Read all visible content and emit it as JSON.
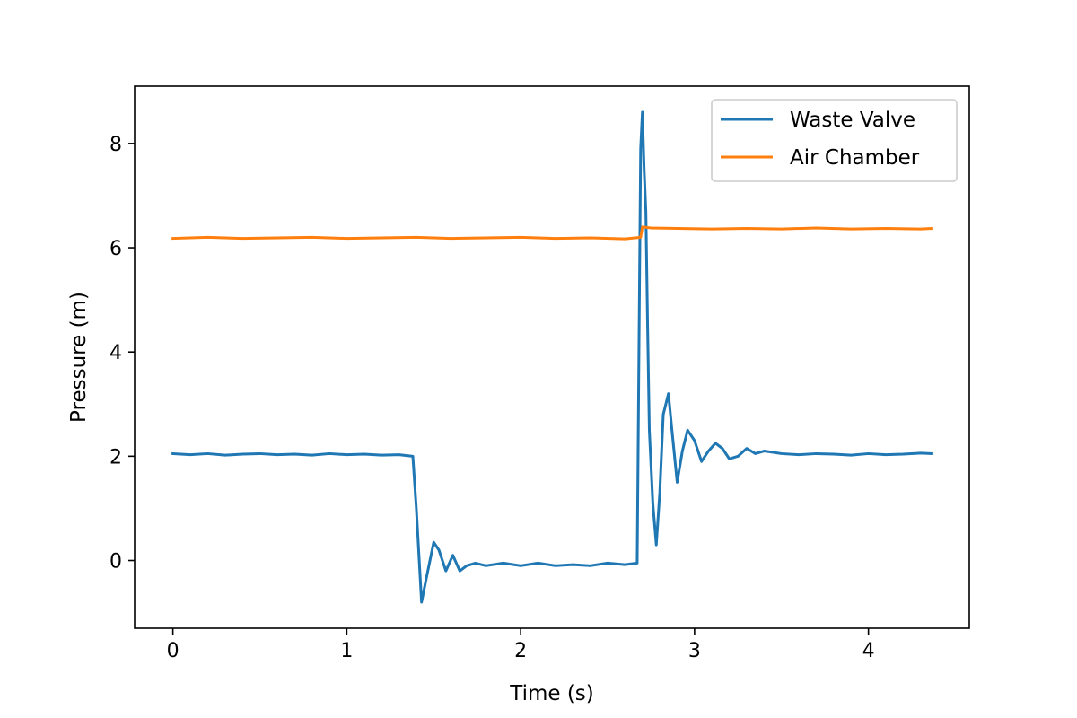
{
  "chart_data": {
    "type": "line",
    "xlabel": "Time (s)",
    "ylabel": "Pressure (m)",
    "xlim": [
      -0.22,
      4.58
    ],
    "ylim": [
      -1.3,
      9.1
    ],
    "xticks": [
      0,
      1,
      2,
      3,
      4
    ],
    "yticks": [
      0,
      2,
      4,
      6,
      8
    ],
    "grid": false,
    "legend_position": "top-right",
    "series": [
      {
        "name": "Waste Valve",
        "color": "#1f77b4",
        "x": [
          0,
          0.1,
          0.2,
          0.3,
          0.4,
          0.5,
          0.6,
          0.7,
          0.8,
          0.9,
          1.0,
          1.1,
          1.2,
          1.3,
          1.38,
          1.4,
          1.43,
          1.46,
          1.5,
          1.53,
          1.57,
          1.61,
          1.65,
          1.69,
          1.74,
          1.8,
          1.9,
          2.0,
          2.1,
          2.2,
          2.3,
          2.4,
          2.5,
          2.6,
          2.67,
          2.69,
          2.7,
          2.71,
          2.72,
          2.73,
          2.74,
          2.76,
          2.78,
          2.8,
          2.82,
          2.85,
          2.87,
          2.9,
          2.93,
          2.96,
          3.0,
          3.04,
          3.08,
          3.12,
          3.16,
          3.2,
          3.25,
          3.3,
          3.35,
          3.4,
          3.5,
          3.6,
          3.7,
          3.8,
          3.9,
          4.0,
          4.1,
          4.2,
          4.3,
          4.36
        ],
        "y": [
          2.05,
          2.03,
          2.05,
          2.02,
          2.04,
          2.05,
          2.03,
          2.04,
          2.02,
          2.05,
          2.03,
          2.04,
          2.02,
          2.03,
          2.0,
          1.0,
          -0.8,
          -0.3,
          0.35,
          0.2,
          -0.2,
          0.1,
          -0.2,
          -0.1,
          -0.05,
          -0.1,
          -0.05,
          -0.1,
          -0.05,
          -0.1,
          -0.08,
          -0.1,
          -0.05,
          -0.08,
          -0.05,
          7.9,
          8.6,
          7.5,
          6.7,
          4.5,
          2.5,
          1.1,
          0.3,
          1.3,
          2.8,
          3.2,
          2.5,
          1.5,
          2.1,
          2.5,
          2.3,
          1.9,
          2.1,
          2.25,
          2.15,
          1.95,
          2.0,
          2.15,
          2.05,
          2.1,
          2.05,
          2.03,
          2.05,
          2.04,
          2.02,
          2.05,
          2.03,
          2.04,
          2.06,
          2.05
        ]
      },
      {
        "name": "Air Chamber",
        "color": "#ff7f0e",
        "x": [
          0,
          0.2,
          0.4,
          0.6,
          0.8,
          1.0,
          1.2,
          1.4,
          1.6,
          1.8,
          2.0,
          2.2,
          2.4,
          2.6,
          2.69,
          2.7,
          2.75,
          2.9,
          3.1,
          3.3,
          3.5,
          3.7,
          3.9,
          4.1,
          4.3,
          4.36
        ],
        "y": [
          6.18,
          6.2,
          6.18,
          6.19,
          6.2,
          6.18,
          6.19,
          6.2,
          6.18,
          6.19,
          6.2,
          6.18,
          6.19,
          6.17,
          6.2,
          6.4,
          6.38,
          6.37,
          6.36,
          6.37,
          6.36,
          6.38,
          6.36,
          6.37,
          6.36,
          6.37
        ]
      }
    ]
  }
}
